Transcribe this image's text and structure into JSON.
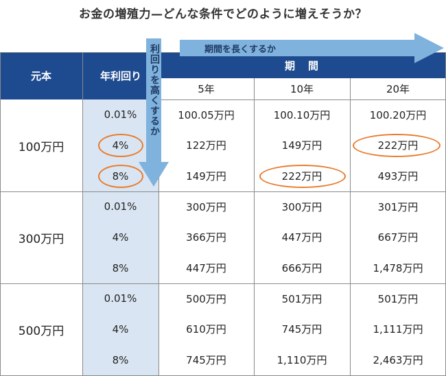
{
  "title": "お金の増殖力—どんな条件でどのように増えそうか？",
  "arrows": {
    "horizontal": "期間を長くするか",
    "vertical": "利回りを高くするか"
  },
  "headers": {
    "principal": "元本",
    "rate": "年利回り",
    "period": "期　間",
    "years": [
      "5年",
      "10年",
      "20年"
    ]
  },
  "groups": [
    {
      "principal": "100万円",
      "rows": [
        {
          "rate": "0.01%",
          "values": [
            "100.05万円",
            "100.10万円",
            "100.20万円"
          ]
        },
        {
          "rate": "4%",
          "values": [
            "122万円",
            "149万円",
            "222万円"
          ]
        },
        {
          "rate": "8%",
          "values": [
            "149万円",
            "222万円",
            "493万円"
          ]
        }
      ]
    },
    {
      "principal": "300万円",
      "rows": [
        {
          "rate": "0.01%",
          "values": [
            "300万円",
            "300万円",
            "301万円"
          ]
        },
        {
          "rate": "4%",
          "values": [
            "366万円",
            "447万円",
            "667万円"
          ]
        },
        {
          "rate": "8%",
          "values": [
            "447万円",
            "666万円",
            "1,478万円"
          ]
        }
      ]
    },
    {
      "principal": "500万円",
      "rows": [
        {
          "rate": "0.01%",
          "values": [
            "500万円",
            "501万円",
            "501万円"
          ]
        },
        {
          "rate": "4%",
          "values": [
            "610万円",
            "745万円",
            "1,111万円"
          ]
        },
        {
          "rate": "8%",
          "values": [
            "745万円",
            "1,110万円",
            "2,463万円"
          ]
        }
      ]
    }
  ],
  "colors": {
    "header_bg": "#1e4b8f",
    "rate_bg": "#d9e5f2",
    "arrow": "#7fb2dc",
    "highlight": "#e87b2c"
  }
}
